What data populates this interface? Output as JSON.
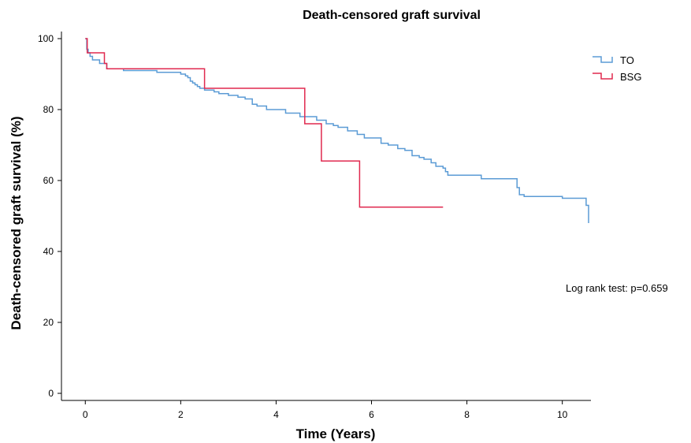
{
  "chart_data": {
    "type": "line",
    "title": "Death-censored graft survival",
    "xlabel": "Time (Years)",
    "ylabel": "Death-censored graft survival (%)",
    "xlim": [
      -0.5,
      10.6
    ],
    "ylim": [
      -2,
      102
    ],
    "xticks": [
      0,
      2,
      4,
      6,
      8,
      10
    ],
    "yticks": [
      0,
      20,
      40,
      60,
      80,
      100
    ],
    "grid": false,
    "legend_position": "top-right",
    "annotation": "Log rank test: p=0.659",
    "series": [
      {
        "name": "TO",
        "color": "#5b9bd5",
        "x": [
          0,
          0.03,
          0.06,
          0.1,
          0.15,
          0.3,
          0.45,
          0.8,
          1.5,
          2.0,
          2.1,
          2.15,
          2.2,
          2.25,
          2.3,
          2.35,
          2.4,
          2.5,
          2.6,
          2.7,
          2.8,
          3.0,
          3.2,
          3.35,
          3.5,
          3.6,
          3.8,
          4.2,
          4.5,
          4.85,
          5.05,
          5.2,
          5.3,
          5.5,
          5.7,
          5.85,
          6.2,
          6.35,
          6.55,
          6.7,
          6.85,
          7.0,
          7.1,
          7.25,
          7.35,
          7.5,
          7.55,
          7.6,
          8.3,
          9.0,
          9.05,
          9.1,
          9.2,
          10.0,
          10.5,
          10.55
        ],
        "y": [
          100,
          97,
          96,
          95,
          94,
          93,
          91.5,
          91,
          90.5,
          90,
          89.5,
          89,
          88,
          87.5,
          87,
          86.5,
          86,
          85.5,
          85.5,
          85,
          84.5,
          84,
          83.5,
          83,
          81.5,
          81,
          80,
          79,
          78,
          77,
          76,
          75.5,
          75,
          74,
          73,
          72,
          70.5,
          70,
          69,
          68.5,
          67,
          66.5,
          66,
          65,
          64,
          63.5,
          62.5,
          61.5,
          60.5,
          60.5,
          58,
          56,
          55.5,
          55,
          53,
          48
        ]
      },
      {
        "name": "BSG",
        "color": "#e0294f",
        "x": [
          0,
          0.04,
          0.4,
          0.45,
          2.5,
          4.6,
          4.95,
          5.75,
          7.5
        ],
        "y": [
          100,
          96,
          93,
          91.5,
          86,
          76,
          65.5,
          52.5,
          52.5
        ]
      }
    ]
  }
}
